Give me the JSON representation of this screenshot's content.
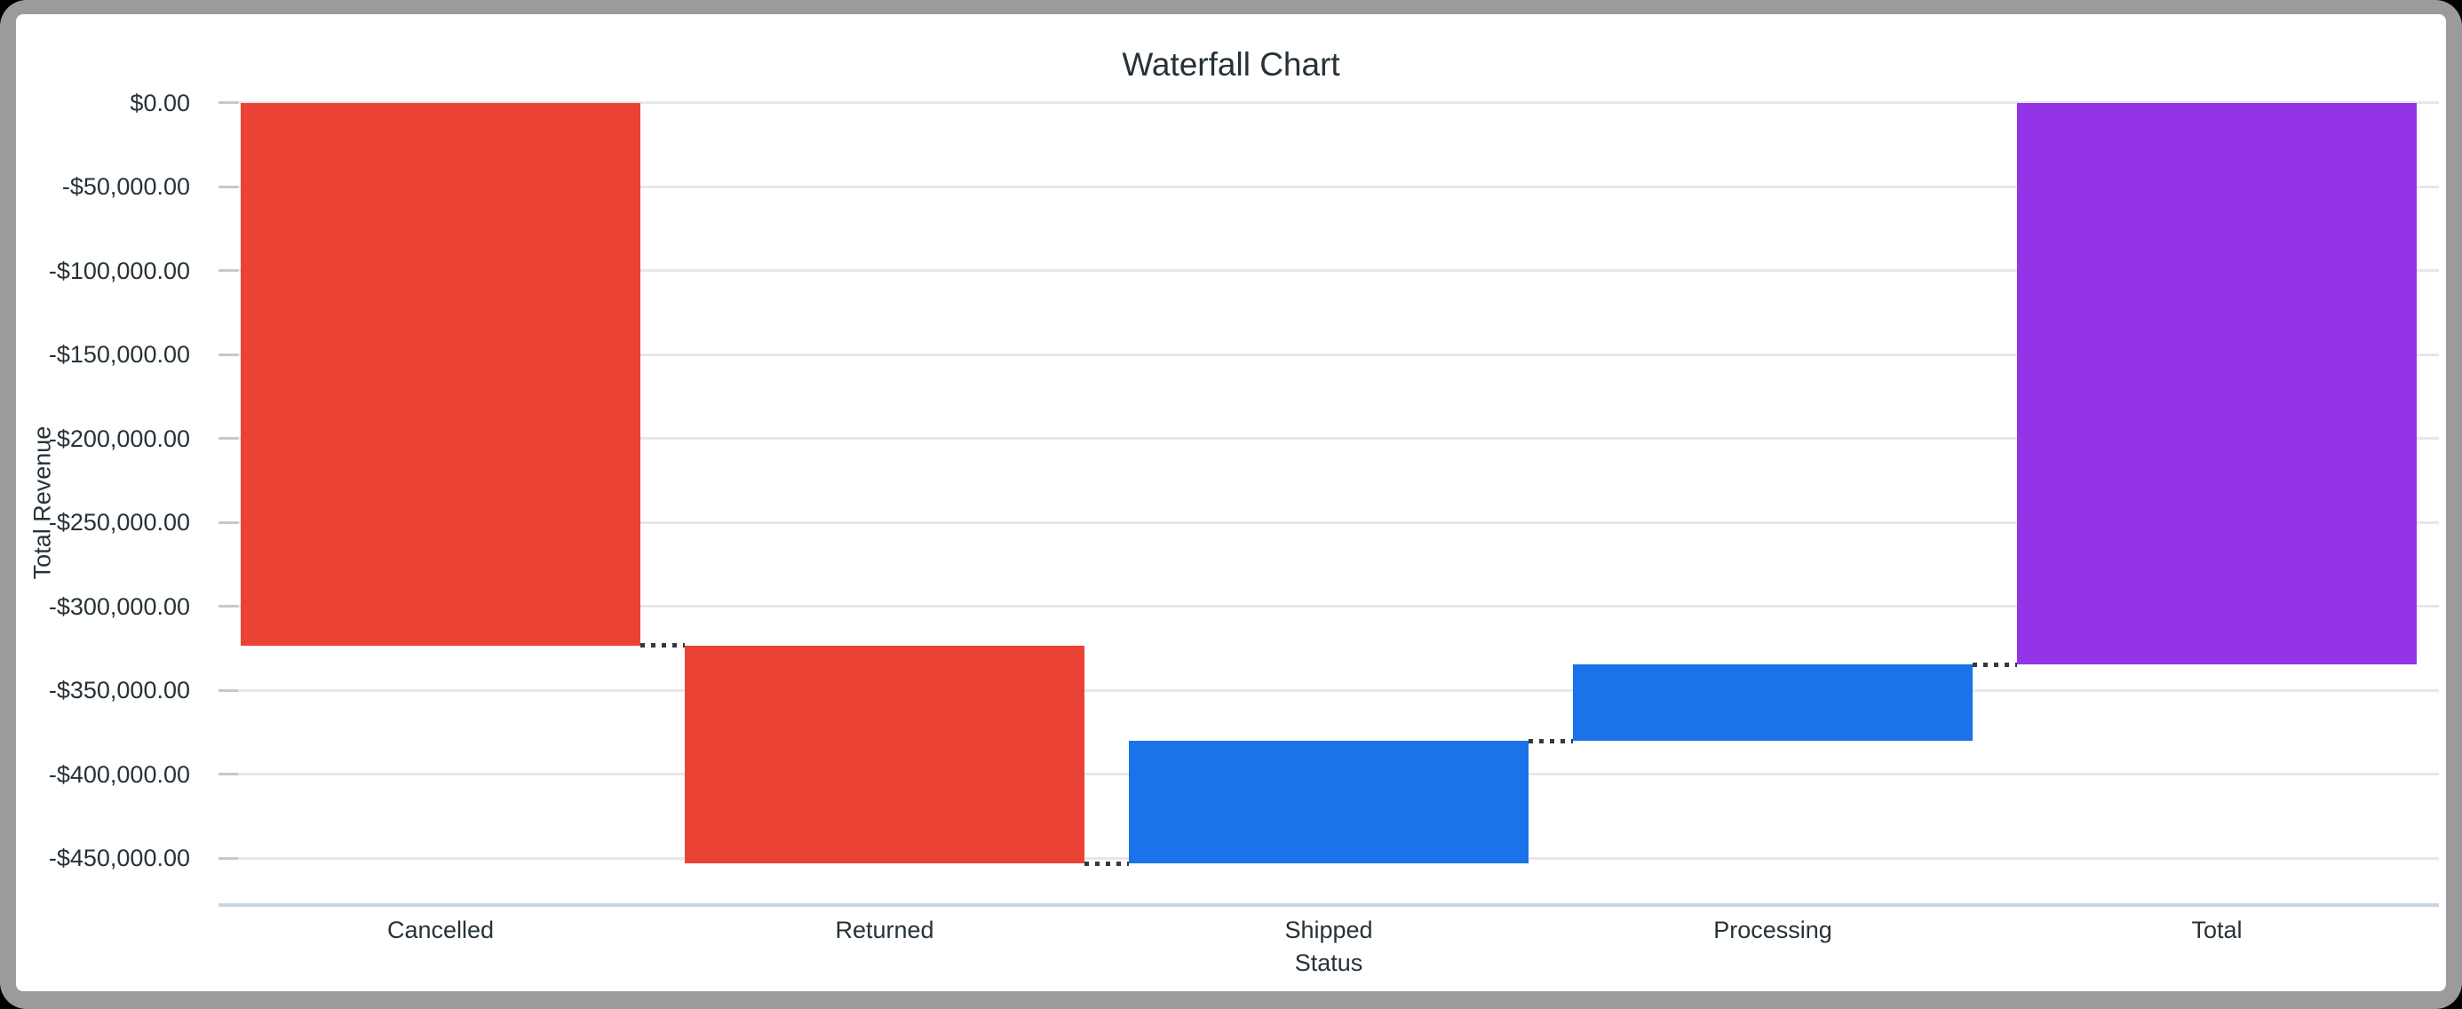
{
  "window": {
    "bezel_color": "#9b9b9d",
    "background_color": "#000000",
    "card_color": "#ffffff"
  },
  "chart_data": {
    "type": "waterfall",
    "title": "Waterfall Chart",
    "xlabel": "Status",
    "ylabel": "Total Revenue",
    "categories": [
      "Cancelled",
      "Returned",
      "Shipped",
      "Processing",
      "Total"
    ],
    "series": [
      {
        "name": "Total Revenue",
        "deltas": [
          -323300,
          -129900,
          73000,
          45500,
          -334700
        ],
        "start": [
          0,
          -323300,
          -453200,
          -380200,
          0
        ],
        "end": [
          -323300,
          -453200,
          -380200,
          -334700,
          -334700
        ],
        "roles": [
          "decrease",
          "decrease",
          "increase",
          "increase",
          "total"
        ]
      }
    ],
    "total": -334700,
    "colors": {
      "decrease": "#ea4335",
      "increase": "#1a73e8",
      "total": "#9334e6",
      "gridline": "#e7e7e7",
      "tick_mark": "#c4c9ce",
      "axis_line": "#cbd4e8",
      "connector": "#343a40",
      "text": "#263238"
    },
    "y_tick_labels": [
      "$0.00",
      "-$50,000.00",
      "-$100,000.00",
      "-$150,000.00",
      "-$200,000.00",
      "-$250,000.00",
      "-$300,000.00",
      "-$350,000.00",
      "-$400,000.00",
      "-$450,000.00"
    ],
    "y_tick_values": [
      0,
      -50000,
      -100000,
      -150000,
      -200000,
      -250000,
      -300000,
      -350000,
      -400000,
      -450000
    ],
    "ylim": [
      -477000,
      0
    ],
    "grid": true,
    "legend_position": "none"
  }
}
